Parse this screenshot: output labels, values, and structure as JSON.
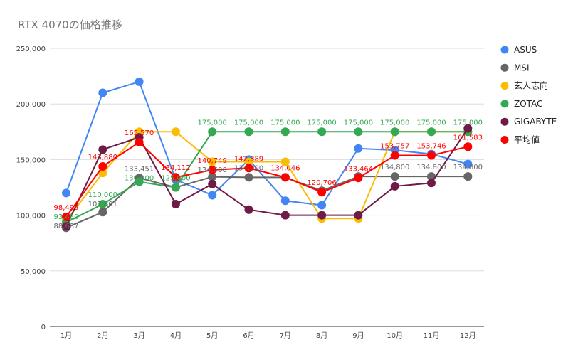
{
  "chart_data": {
    "type": "line",
    "title": "RTX 4070の価格推移",
    "categories": [
      "1月",
      "2月",
      "3月",
      "4月",
      "5月",
      "6月",
      "7月",
      "8月",
      "9月",
      "10月",
      "11月",
      "12月"
    ],
    "ylim": [
      0,
      250000
    ],
    "yticks": [
      "0",
      "50,000",
      "100,000",
      "150,000",
      "200,000",
      "250,000"
    ],
    "grid": true,
    "legend": "right",
    "series": [
      {
        "name": "ASUS",
        "color": "#4285F4",
        "values": [
          120000,
          210000,
          220000,
          132000,
          118000,
          150000,
          113000,
          109000,
          160000,
          158500,
          155000,
          146000
        ],
        "labels": false
      },
      {
        "name": "MSI",
        "color": "#666666",
        "values": [
          88687,
          102801,
          133451,
          125000,
          134500,
          134000,
          134000,
          122000,
          134800,
          134800,
          134800,
          134800
        ],
        "labels": true,
        "label_text": [
          "88,687",
          "102,801",
          "133,451",
          "",
          "134,500",
          "134,000",
          "",
          "",
          "",
          "134,800",
          "134,800",
          "134,800"
        ]
      },
      {
        "name": "玄人志向",
        "color": "#FBBC04",
        "values": [
          95000,
          138000,
          175000,
          175000,
          148000,
          148000,
          148000,
          97000,
          97000,
          175000,
          175000,
          175000
        ],
        "labels": false
      },
      {
        "name": "ZOTAC",
        "color": "#34A853",
        "values": [
          93480,
          110000,
          130000,
          125000,
          175000,
          175000,
          175000,
          175000,
          175000,
          175000,
          175000,
          175000
        ],
        "labels": true,
        "label_text": [
          "93,480",
          "110,000",
          "130,000",
          "125,000",
          "175,000",
          "175,000",
          "175,000",
          "175,000",
          "175,000",
          "175,000",
          "175,000",
          "175,000"
        ]
      },
      {
        "name": "GIGABYTE",
        "color": "#6E1B47",
        "values": [
          90000,
          159000,
          170000,
          110000,
          128000,
          105000,
          100000,
          100000,
          100000,
          126000,
          129000,
          178000
        ],
        "labels": false
      },
      {
        "name": "平均値",
        "color": "#FF0000",
        "values": [
          98495,
          143880,
          165570,
          134112,
          140749,
          142389,
          134046,
          120706,
          133464,
          153757,
          153746,
          161583
        ],
        "labels": true,
        "label_text": [
          "98,495",
          "143,880",
          "165,570",
          "134,112",
          "140,749",
          "142,389",
          "134,046",
          "120,706",
          "133,464",
          "153,757",
          "153,746",
          "161,583"
        ]
      }
    ]
  }
}
